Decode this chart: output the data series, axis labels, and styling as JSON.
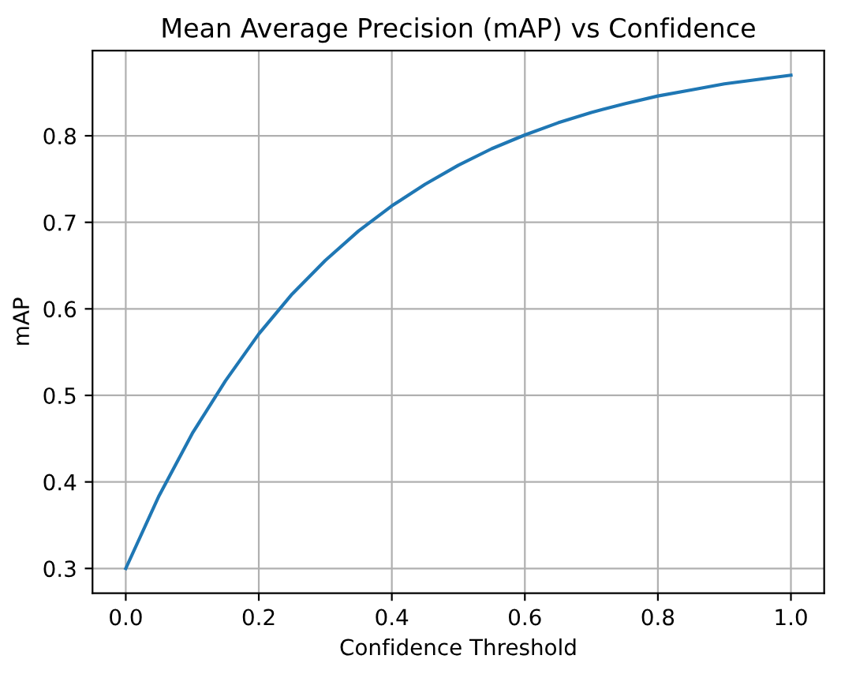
{
  "chart_data": {
    "type": "line",
    "title": "Mean Average Precision (mAP) vs Confidence",
    "xlabel": "Confidence Threshold",
    "ylabel": "mAP",
    "x": [
      0,
      0.05,
      0.1,
      0.15,
      0.2,
      0.25,
      0.3,
      0.35,
      0.4,
      0.45,
      0.5,
      0.55,
      0.6,
      0.65,
      0.7,
      0.75,
      0.8,
      0.85,
      0.9,
      0.95,
      1.0
    ],
    "series": [
      {
        "color": "#1f77b4",
        "values": [
          0.3,
          0.384,
          0.456,
          0.517,
          0.571,
          0.617,
          0.656,
          0.69,
          0.719,
          0.744,
          0.766,
          0.785,
          0.801,
          0.815,
          0.827,
          0.837,
          0.846,
          0.853,
          0.86,
          0.865,
          0.87
        ]
      }
    ],
    "xlim": [
      -0.05,
      1.05
    ],
    "ylim": [
      0.2715,
      0.8985
    ],
    "xticks": [
      {
        "value": 0,
        "label": "0.0"
      },
      0.2,
      0.4,
      0.6,
      0.8,
      {
        "value": 1,
        "label": "1.0"
      }
    ],
    "yticks": [
      0.3,
      0.4,
      0.5,
      0.6,
      0.7,
      0.8
    ],
    "grid": true,
    "marker": "none",
    "line_style": "solid",
    "legend": false
  }
}
